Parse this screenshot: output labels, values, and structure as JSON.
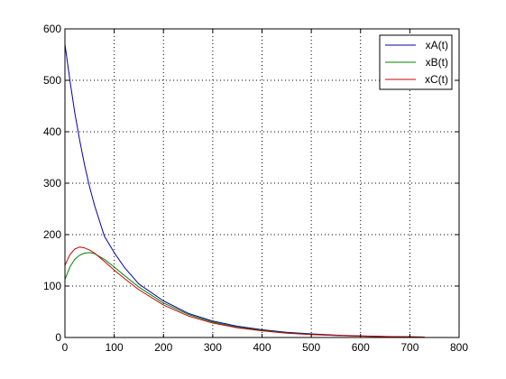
{
  "chart_data": {
    "type": "line",
    "title": "",
    "xlabel": "",
    "ylabel": "",
    "xlim": [
      0,
      800
    ],
    "ylim": [
      0,
      600
    ],
    "xticks": [
      0,
      100,
      200,
      300,
      400,
      500,
      600,
      700,
      800
    ],
    "yticks": [
      0,
      100,
      200,
      300,
      400,
      500,
      600
    ],
    "grid": true,
    "grid_style": "dotted",
    "legend_position": "top-right",
    "x": [
      0,
      10,
      20,
      30,
      40,
      50,
      60,
      80,
      100,
      120,
      150,
      200,
      250,
      300,
      350,
      400,
      450,
      500,
      550,
      600,
      650,
      700,
      730
    ],
    "series": [
      {
        "name": "xA(t)",
        "color": "#0000b0",
        "values": [
          570,
          500,
          437,
          383,
          335,
          293,
          257,
          197,
          165,
          137,
          104,
          71,
          47,
          32,
          22,
          15,
          10,
          7,
          4.5,
          3,
          2,
          1.3,
          0.8
        ]
      },
      {
        "name": "xB(t)",
        "color": "#008000",
        "values": [
          113,
          137,
          152,
          160,
          164,
          165,
          163,
          152,
          137,
          121,
          98,
          67,
          45,
          30,
          20,
          14,
          9,
          6,
          4,
          2.7,
          1.8,
          1.2,
          0.8
        ]
      },
      {
        "name": "xC(t)",
        "color": "#cc0000",
        "values": [
          140,
          161,
          172,
          176,
          174,
          170,
          164,
          148,
          131,
          115,
          93,
          63,
          42,
          28,
          19,
          13,
          8.5,
          5.8,
          3.9,
          2.6,
          1.7,
          1.1,
          0.7
        ]
      }
    ]
  }
}
